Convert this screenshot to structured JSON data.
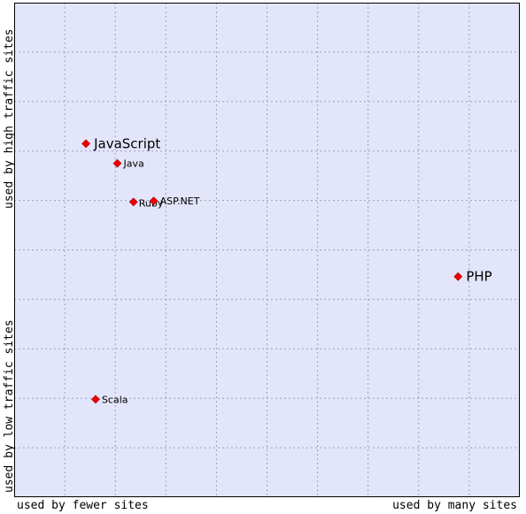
{
  "chart_data": {
    "type": "scatter",
    "axes": {
      "x_label_low": "used by fewer sites",
      "x_label_high": "used by many sites",
      "y_label_low": "used by low traffic sites",
      "y_label_high": "used by high traffic sites"
    },
    "xlim": [
      0,
      10
    ],
    "ylim": [
      0,
      10
    ],
    "grid": true,
    "colors": {
      "plot_bg": "#e3e6fa",
      "grid": "#9c9fc4",
      "frame": "#000000",
      "point": "#ee0000",
      "text": "#000000"
    },
    "points": [
      {
        "label": "JavaScript",
        "x": 1.42,
        "y": 7.15,
        "size": "large"
      },
      {
        "label": "Java",
        "x": 2.04,
        "y": 6.75,
        "size": "small"
      },
      {
        "label": "Ruby",
        "x": 2.36,
        "y": 5.97,
        "size": "small",
        "label_offset": "right-low"
      },
      {
        "label": "ASP.NET",
        "x": 2.76,
        "y": 5.99,
        "size": "small"
      },
      {
        "label": "PHP",
        "x": 8.78,
        "y": 4.46,
        "size": "large"
      },
      {
        "label": "Scala",
        "x": 1.61,
        "y": 1.98,
        "size": "small"
      }
    ]
  }
}
